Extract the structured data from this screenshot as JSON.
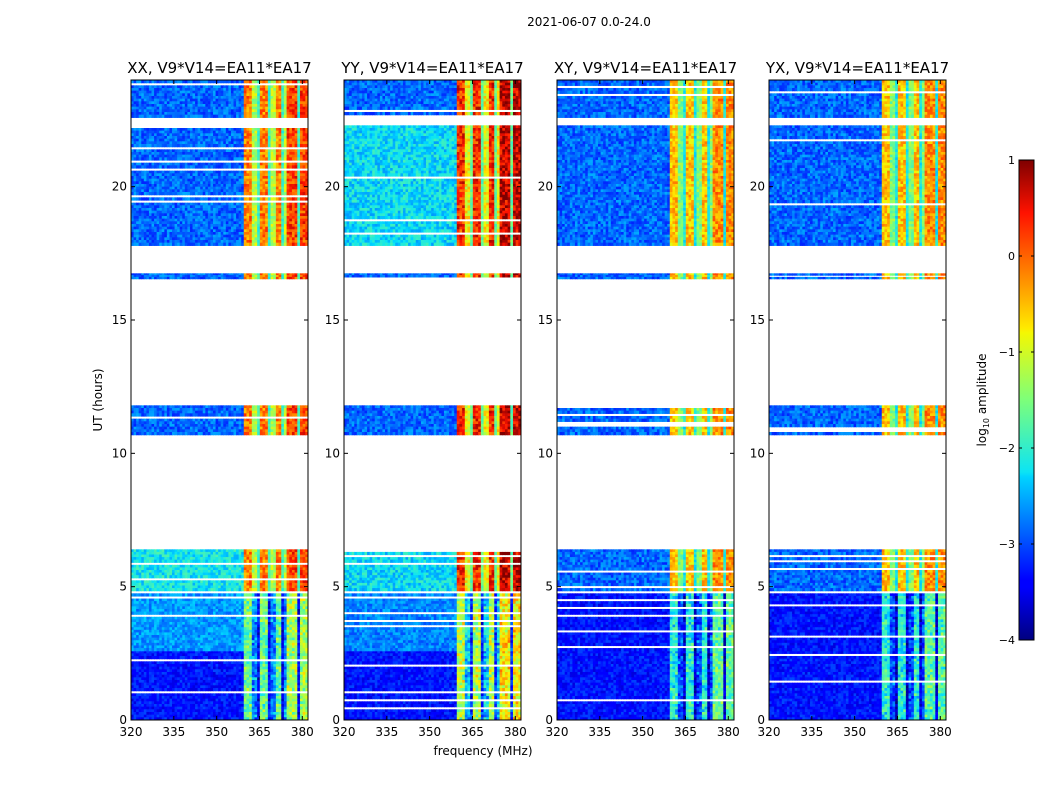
{
  "chart_data": {
    "type": "heatmap",
    "suptitle": "2021-06-07 0.0-24.0",
    "xlabel": "frequency (MHz)",
    "ylabel": "UT (hours)",
    "xlim": [
      320,
      382
    ],
    "ylim": [
      0,
      24
    ],
    "x_ticks": [
      320,
      335,
      350,
      365,
      380
    ],
    "y_ticks": [
      0,
      5,
      10,
      15,
      20
    ],
    "panels": [
      {
        "title": "XX, V9*V14=EA11*EA17",
        "brightness": 1.0
      },
      {
        "title": "YY, V9*V14=EA11*EA17",
        "brightness": 1.12
      },
      {
        "title": "XY, V9*V14=EA11*EA17",
        "brightness": 0.9
      },
      {
        "title": "YX, V9*V14=EA11*EA17",
        "brightness": 0.9
      }
    ],
    "data_segments_hours": [
      [
        0,
        2.6
      ],
      [
        2.6,
        4.75
      ],
      [
        4.85,
        6.4
      ],
      [
        10.7,
        11.8
      ],
      [
        16.55,
        16.75
      ],
      [
        17.8,
        22.3
      ],
      [
        22.6,
        24
      ]
    ],
    "rfi_band_mhz": [
      359.5,
      382
    ],
    "colorbar": {
      "label": "log10 amplitude",
      "range": [
        -4,
        1
      ],
      "ticks": [
        -4,
        -3,
        -2,
        -1,
        0,
        1
      ]
    }
  }
}
